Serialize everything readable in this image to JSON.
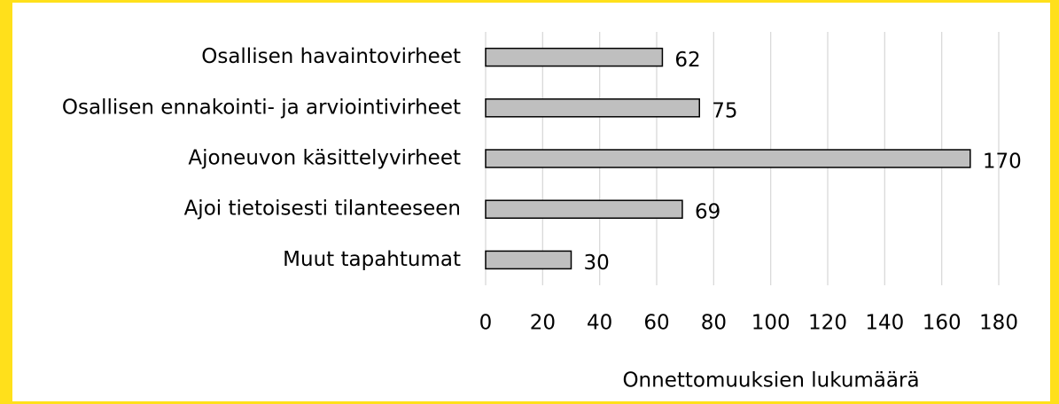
{
  "chart_data": {
    "type": "bar",
    "orientation": "horizontal",
    "categories": [
      "Osallisen havaintovirheet",
      "Osallisen ennakointi- ja arviointivirheet",
      "Ajoneuvon käsittelyvirheet",
      "Ajoi tietoisesti tilanteeseen",
      "Muut tapahtumat"
    ],
    "values": [
      62,
      75,
      170,
      69,
      30
    ],
    "color": "#bfbfbf",
    "xlabel": "Onnettomuuksien lukumäärä",
    "xlim": [
      0,
      180
    ],
    "xticks": [
      0,
      20,
      40,
      60,
      80,
      100,
      120,
      140,
      160,
      180
    ],
    "grid": true
  }
}
